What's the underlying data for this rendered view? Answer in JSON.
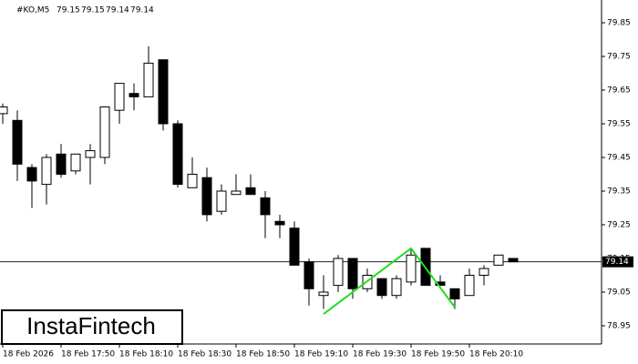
{
  "chart_data": {
    "type": "candlestick",
    "title": "#KO,M5",
    "header_values": [
      79.15,
      79.15,
      79.14,
      79.14
    ],
    "categories": [
      "18 Feb 2026",
      null,
      null,
      null,
      "18 Feb 17:50",
      null,
      null,
      null,
      "18 Feb 18:10",
      null,
      null,
      null,
      "18 Feb 18:30",
      null,
      null,
      null,
      "18 Feb 18:50",
      null,
      null,
      null,
      "18 Feb 19:10",
      null,
      null,
      null,
      "18 Feb 19:30",
      null,
      null,
      null,
      "18 Feb 19:50",
      null,
      null,
      null,
      "18 Feb 20:10",
      null,
      null,
      null
    ],
    "open": [
      79.58,
      79.56,
      79.42,
      79.37,
      79.46,
      79.41,
      79.45,
      79.45,
      79.59,
      79.64,
      79.63,
      79.74,
      79.55,
      79.36,
      79.39,
      79.29,
      79.34,
      79.36,
      79.33,
      79.26,
      79.24,
      79.14,
      79.04,
      79.07,
      79.15,
      79.06,
      79.09,
      79.04,
      79.08,
      79.18,
      79.08,
      79.06,
      79.04,
      79.1,
      79.13,
      79.15
    ],
    "high": [
      79.61,
      79.59,
      79.43,
      79.46,
      79.49,
      79.46,
      79.49,
      79.6,
      79.67,
      79.67,
      79.78,
      79.74,
      79.56,
      79.45,
      79.42,
      79.37,
      79.4,
      79.4,
      79.35,
      79.28,
      79.26,
      79.15,
      79.1,
      79.16,
      79.15,
      79.12,
      79.09,
      79.1,
      79.18,
      79.18,
      79.1,
      79.06,
      79.12,
      79.13,
      79.16,
      79.15
    ],
    "low": [
      79.55,
      79.38,
      79.3,
      79.31,
      79.39,
      79.4,
      79.37,
      79.43,
      79.55,
      79.59,
      79.63,
      79.53,
      79.36,
      79.36,
      79.26,
      79.28,
      79.34,
      79.34,
      79.21,
      79.21,
      79.13,
      79.01,
      79.0,
      79.05,
      79.03,
      79.05,
      79.03,
      79.03,
      79.07,
      79.07,
      79.07,
      79.0,
      79.04,
      79.07,
      79.13,
      79.14
    ],
    "close": [
      79.6,
      79.43,
      79.38,
      79.45,
      79.4,
      79.46,
      79.47,
      79.6,
      79.67,
      79.63,
      79.73,
      79.55,
      79.37,
      79.4,
      79.28,
      79.35,
      79.35,
      79.34,
      79.28,
      79.25,
      79.13,
      79.06,
      79.05,
      79.15,
      79.06,
      79.1,
      79.04,
      79.09,
      79.16,
      79.07,
      79.07,
      79.03,
      79.1,
      79.12,
      79.16,
      79.14
    ],
    "up_color": "#ffffff",
    "down_color": "#000000",
    "pattern_line": {
      "color": "#22dd22",
      "x": [
        22,
        28,
        31
      ],
      "values": [
        78.985,
        79.18,
        79.005
      ]
    },
    "last_price": 79.14,
    "ylim": [
      78.9,
      79.9
    ],
    "yticks": [
      78.95,
      79.05,
      79.15,
      79.25,
      79.35,
      79.45,
      79.55,
      79.65,
      79.75,
      79.85
    ],
    "grid": false
  },
  "logo": "InstaFintech"
}
